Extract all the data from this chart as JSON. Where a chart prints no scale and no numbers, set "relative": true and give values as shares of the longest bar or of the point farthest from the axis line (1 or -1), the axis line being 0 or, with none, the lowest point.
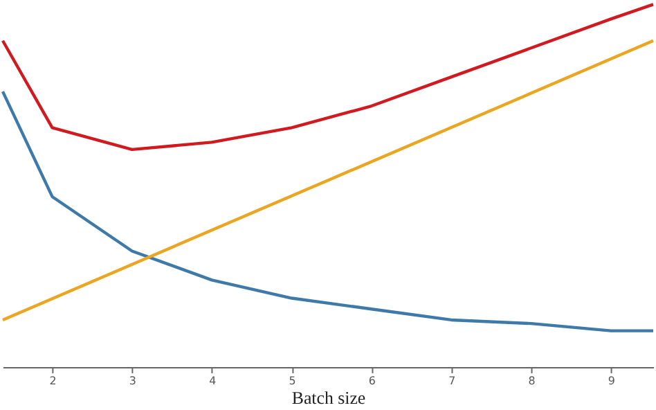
{
  "chart_data": {
    "type": "line",
    "xlabel": "Batch size",
    "relative": true,
    "xlim": [
      1.38,
      9.53
    ],
    "xticks": [
      2,
      3,
      4,
      5,
      6,
      7,
      8,
      9
    ],
    "grid": false,
    "marker": "none",
    "line_style": "solid",
    "series": [
      {
        "color": "#d11a1f",
        "x": [
          1.38,
          2,
          3,
          4,
          5,
          6,
          7,
          8,
          9,
          9.53
        ],
        "values": [
          0.9,
          0.66,
          0.6,
          0.62,
          0.66,
          0.72,
          0.8,
          0.88,
          0.96,
          1.0
        ]
      },
      {
        "color": "#3d79a9",
        "x": [
          1.38,
          2,
          3,
          4,
          5,
          6,
          7,
          8,
          9,
          9.53
        ],
        "values": [
          0.76,
          0.47,
          0.32,
          0.24,
          0.19,
          0.16,
          0.13,
          0.12,
          0.1,
          0.1
        ]
      },
      {
        "color": "#eba520",
        "x": [
          1.38,
          9.53
        ],
        "values": [
          0.13,
          0.9
        ]
      }
    ]
  }
}
